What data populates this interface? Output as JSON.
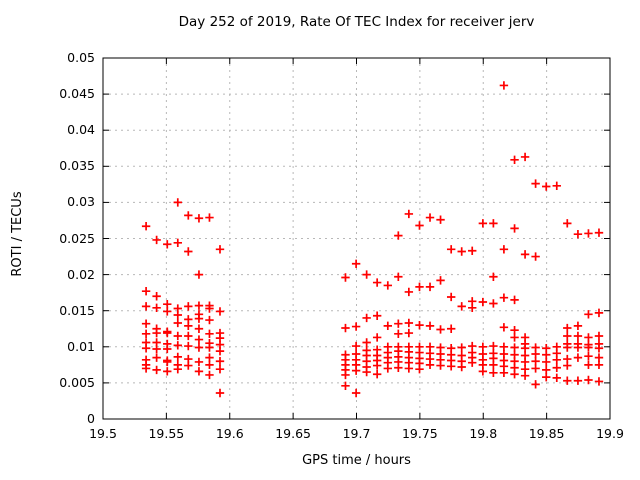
{
  "chart_data": {
    "type": "scatter",
    "title": "Day 252 of 2019, Rate Of TEC Index for receiver jerv",
    "xlabel": "GPS time / hours",
    "ylabel": "ROTI / TECUs",
    "xlim": [
      19.5,
      19.9
    ],
    "ylim": [
      0,
      0.05
    ],
    "xticks": [
      19.5,
      19.55,
      19.6,
      19.65,
      19.7,
      19.75,
      19.8,
      19.85,
      19.9
    ],
    "xtick_labels": [
      "19.5",
      "19.55",
      "19.6",
      "19.65",
      "19.7",
      "19.75",
      "19.8",
      "19.85",
      "19.9"
    ],
    "yticks": [
      0,
      0.005,
      0.01,
      0.015,
      0.02,
      0.025,
      0.03,
      0.035,
      0.04,
      0.045,
      0.05
    ],
    "ytick_labels": [
      "0",
      "0.005",
      "0.01",
      "0.015",
      "0.02",
      "0.025",
      "0.03",
      "0.035",
      "0.04",
      "0.045",
      "0.05"
    ],
    "grid": true,
    "legend": "none",
    "marker": "plus",
    "marker_color": "#ff0000",
    "grid_color": "#b8b8b8",
    "border_color": "#000000",
    "series": [
      {
        "name": "ROTI",
        "points": [
          [
            19.534,
            0.0267
          ],
          [
            19.534,
            0.0177
          ],
          [
            19.534,
            0.0156
          ],
          [
            19.534,
            0.0132
          ],
          [
            19.534,
            0.0118
          ],
          [
            19.534,
            0.0106
          ],
          [
            19.534,
            0.0098
          ],
          [
            19.534,
            0.0082
          ],
          [
            19.534,
            0.0075
          ],
          [
            19.534,
            0.007
          ],
          [
            19.5423,
            0.0248
          ],
          [
            19.5423,
            0.017
          ],
          [
            19.5423,
            0.0154
          ],
          [
            19.5423,
            0.0125
          ],
          [
            19.5423,
            0.0119
          ],
          [
            19.5423,
            0.0106
          ],
          [
            19.5423,
            0.0097
          ],
          [
            19.5423,
            0.0085
          ],
          [
            19.5423,
            0.0068
          ],
          [
            19.5507,
            0.0242
          ],
          [
            19.5507,
            0.0159
          ],
          [
            19.5507,
            0.0149
          ],
          [
            19.5507,
            0.0121
          ],
          [
            19.5507,
            0.0119
          ],
          [
            19.5507,
            0.0104
          ],
          [
            19.5507,
            0.0097
          ],
          [
            19.5507,
            0.0081
          ],
          [
            19.5507,
            0.0079
          ],
          [
            19.5507,
            0.0066
          ],
          [
            19.559,
            0.03
          ],
          [
            19.559,
            0.0244
          ],
          [
            19.559,
            0.0153
          ],
          [
            19.559,
            0.0144
          ],
          [
            19.559,
            0.0133
          ],
          [
            19.559,
            0.0115
          ],
          [
            19.559,
            0.0102
          ],
          [
            19.559,
            0.0086
          ],
          [
            19.559,
            0.0075
          ],
          [
            19.559,
            0.0069
          ],
          [
            19.5673,
            0.0282
          ],
          [
            19.5673,
            0.0232
          ],
          [
            19.5673,
            0.0156
          ],
          [
            19.5673,
            0.0138
          ],
          [
            19.5673,
            0.0129
          ],
          [
            19.5673,
            0.0115
          ],
          [
            19.5673,
            0.0101
          ],
          [
            19.5673,
            0.0083
          ],
          [
            19.5673,
            0.0074
          ],
          [
            19.5757,
            0.0278
          ],
          [
            19.5757,
            0.02
          ],
          [
            19.5757,
            0.0157
          ],
          [
            19.5757,
            0.0145
          ],
          [
            19.5757,
            0.0139
          ],
          [
            19.5757,
            0.0125
          ],
          [
            19.5757,
            0.011
          ],
          [
            19.5757,
            0.0099
          ],
          [
            19.5757,
            0.0079
          ],
          [
            19.5757,
            0.0066
          ],
          [
            19.584,
            0.0279
          ],
          [
            19.584,
            0.0157
          ],
          [
            19.584,
            0.0153
          ],
          [
            19.584,
            0.0137
          ],
          [
            19.584,
            0.0118
          ],
          [
            19.584,
            0.0105
          ],
          [
            19.584,
            0.0099
          ],
          [
            19.584,
            0.0085
          ],
          [
            19.584,
            0.0075
          ],
          [
            19.584,
            0.0061
          ],
          [
            19.5923,
            0.0235
          ],
          [
            19.5923,
            0.0149
          ],
          [
            19.5923,
            0.0119
          ],
          [
            19.5923,
            0.0112
          ],
          [
            19.5923,
            0.0103
          ],
          [
            19.5923,
            0.0094
          ],
          [
            19.5923,
            0.008
          ],
          [
            19.5923,
            0.0069
          ],
          [
            19.5923,
            0.0036
          ],
          [
            19.6913,
            0.0196
          ],
          [
            19.6913,
            0.0126
          ],
          [
            19.6913,
            0.0089
          ],
          [
            19.6913,
            0.0082
          ],
          [
            19.6913,
            0.0075
          ],
          [
            19.6913,
            0.0068
          ],
          [
            19.6913,
            0.0061
          ],
          [
            19.6913,
            0.0046
          ],
          [
            19.6997,
            0.0215
          ],
          [
            19.6997,
            0.0128
          ],
          [
            19.6997,
            0.0101
          ],
          [
            19.6997,
            0.009
          ],
          [
            19.6997,
            0.0082
          ],
          [
            19.6997,
            0.0075
          ],
          [
            19.6997,
            0.0067
          ],
          [
            19.6997,
            0.0036
          ],
          [
            19.708,
            0.02
          ],
          [
            19.708,
            0.014
          ],
          [
            19.708,
            0.0106
          ],
          [
            19.708,
            0.0095
          ],
          [
            19.708,
            0.0088
          ],
          [
            19.708,
            0.008
          ],
          [
            19.708,
            0.0072
          ],
          [
            19.708,
            0.0065
          ],
          [
            19.7163,
            0.0189
          ],
          [
            19.7163,
            0.0143
          ],
          [
            19.7163,
            0.0113
          ],
          [
            19.7163,
            0.0096
          ],
          [
            19.7163,
            0.0088
          ],
          [
            19.7163,
            0.0081
          ],
          [
            19.7163,
            0.0074
          ],
          [
            19.7163,
            0.0062
          ],
          [
            19.7247,
            0.0185
          ],
          [
            19.7247,
            0.0129
          ],
          [
            19.7247,
            0.01
          ],
          [
            19.7247,
            0.0092
          ],
          [
            19.7247,
            0.0085
          ],
          [
            19.7247,
            0.0078
          ],
          [
            19.7247,
            0.007
          ],
          [
            19.733,
            0.0254
          ],
          [
            19.733,
            0.0197
          ],
          [
            19.733,
            0.0132
          ],
          [
            19.733,
            0.0118
          ],
          [
            19.733,
            0.01
          ],
          [
            19.733,
            0.0094
          ],
          [
            19.733,
            0.0086
          ],
          [
            19.733,
            0.0079
          ],
          [
            19.733,
            0.0071
          ],
          [
            19.7413,
            0.0284
          ],
          [
            19.7413,
            0.0176
          ],
          [
            19.7413,
            0.0133
          ],
          [
            19.7413,
            0.0119
          ],
          [
            19.7413,
            0.01
          ],
          [
            19.7413,
            0.0093
          ],
          [
            19.7413,
            0.0085
          ],
          [
            19.7413,
            0.0078
          ],
          [
            19.7413,
            0.007
          ],
          [
            19.7497,
            0.0268
          ],
          [
            19.7497,
            0.0183
          ],
          [
            19.7497,
            0.013
          ],
          [
            19.7497,
            0.01
          ],
          [
            19.7497,
            0.0092
          ],
          [
            19.7497,
            0.0084
          ],
          [
            19.7497,
            0.0077
          ],
          [
            19.7497,
            0.0069
          ],
          [
            19.758,
            0.0279
          ],
          [
            19.758,
            0.0183
          ],
          [
            19.758,
            0.0129
          ],
          [
            19.758,
            0.01
          ],
          [
            19.758,
            0.0091
          ],
          [
            19.758,
            0.0083
          ],
          [
            19.758,
            0.0075
          ],
          [
            19.7663,
            0.0276
          ],
          [
            19.7663,
            0.0192
          ],
          [
            19.7663,
            0.0124
          ],
          [
            19.7663,
            0.0099
          ],
          [
            19.7663,
            0.009
          ],
          [
            19.7663,
            0.0082
          ],
          [
            19.7663,
            0.0074
          ],
          [
            19.7747,
            0.0235
          ],
          [
            19.7747,
            0.0169
          ],
          [
            19.7747,
            0.0125
          ],
          [
            19.7747,
            0.0098
          ],
          [
            19.7747,
            0.0089
          ],
          [
            19.7747,
            0.0081
          ],
          [
            19.7747,
            0.0073
          ],
          [
            19.783,
            0.0232
          ],
          [
            19.783,
            0.0156
          ],
          [
            19.783,
            0.0099
          ],
          [
            19.783,
            0.0088
          ],
          [
            19.783,
            0.008
          ],
          [
            19.783,
            0.0072
          ],
          [
            19.7913,
            0.0233
          ],
          [
            19.7913,
            0.0163
          ],
          [
            19.7913,
            0.0154
          ],
          [
            19.7913,
            0.0101
          ],
          [
            19.7913,
            0.0092
          ],
          [
            19.7913,
            0.0085
          ],
          [
            19.7913,
            0.0078
          ],
          [
            19.7997,
            0.0271
          ],
          [
            19.7997,
            0.0162
          ],
          [
            19.7997,
            0.01
          ],
          [
            19.7997,
            0.009
          ],
          [
            19.7997,
            0.0082
          ],
          [
            19.7997,
            0.0075
          ],
          [
            19.7997,
            0.0066
          ],
          [
            19.808,
            0.0271
          ],
          [
            19.808,
            0.0197
          ],
          [
            19.808,
            0.016
          ],
          [
            19.808,
            0.0101
          ],
          [
            19.808,
            0.0091
          ],
          [
            19.808,
            0.0084
          ],
          [
            19.808,
            0.0075
          ],
          [
            19.808,
            0.0064
          ],
          [
            19.8163,
            0.0462
          ],
          [
            19.8163,
            0.0235
          ],
          [
            19.8163,
            0.0168
          ],
          [
            19.8163,
            0.0127
          ],
          [
            19.8163,
            0.01
          ],
          [
            19.8163,
            0.009
          ],
          [
            19.8163,
            0.0081
          ],
          [
            19.8163,
            0.0073
          ],
          [
            19.8163,
            0.0064
          ],
          [
            19.8247,
            0.0359
          ],
          [
            19.8247,
            0.0264
          ],
          [
            19.8247,
            0.0165
          ],
          [
            19.8247,
            0.0123
          ],
          [
            19.8247,
            0.0113
          ],
          [
            19.8247,
            0.0099
          ],
          [
            19.8247,
            0.0089
          ],
          [
            19.8247,
            0.008
          ],
          [
            19.8247,
            0.0071
          ],
          [
            19.8247,
            0.0062
          ],
          [
            19.833,
            0.0363
          ],
          [
            19.833,
            0.0228
          ],
          [
            19.833,
            0.0113
          ],
          [
            19.833,
            0.0104
          ],
          [
            19.833,
            0.0098
          ],
          [
            19.833,
            0.0088
          ],
          [
            19.833,
            0.0079
          ],
          [
            19.833,
            0.0069
          ],
          [
            19.833,
            0.006
          ],
          [
            19.8413,
            0.0326
          ],
          [
            19.8413,
            0.0225
          ],
          [
            19.8413,
            0.0099
          ],
          [
            19.8413,
            0.009
          ],
          [
            19.8413,
            0.008
          ],
          [
            19.8413,
            0.007
          ],
          [
            19.8413,
            0.0048
          ],
          [
            19.8497,
            0.0322
          ],
          [
            19.8497,
            0.0098
          ],
          [
            19.8497,
            0.0089
          ],
          [
            19.8497,
            0.0079
          ],
          [
            19.8497,
            0.0068
          ],
          [
            19.8497,
            0.0058
          ],
          [
            19.858,
            0.0323
          ],
          [
            19.858,
            0.01
          ],
          [
            19.858,
            0.0091
          ],
          [
            19.858,
            0.0082
          ],
          [
            19.858,
            0.0071
          ],
          [
            19.858,
            0.0057
          ],
          [
            19.8663,
            0.0271
          ],
          [
            19.8663,
            0.0126
          ],
          [
            19.8663,
            0.0115
          ],
          [
            19.8663,
            0.0104
          ],
          [
            19.8663,
            0.0099
          ],
          [
            19.8663,
            0.0083
          ],
          [
            19.8663,
            0.0074
          ],
          [
            19.8663,
            0.0053
          ],
          [
            19.8747,
            0.0256
          ],
          [
            19.8747,
            0.0129
          ],
          [
            19.8747,
            0.0115
          ],
          [
            19.8747,
            0.0104
          ],
          [
            19.8747,
            0.0099
          ],
          [
            19.8747,
            0.0085
          ],
          [
            19.8747,
            0.0053
          ],
          [
            19.883,
            0.0257
          ],
          [
            19.883,
            0.0145
          ],
          [
            19.883,
            0.0113
          ],
          [
            19.883,
            0.0103
          ],
          [
            19.883,
            0.0099
          ],
          [
            19.883,
            0.0087
          ],
          [
            19.883,
            0.0075
          ],
          [
            19.883,
            0.0054
          ],
          [
            19.8913,
            0.0258
          ],
          [
            19.8913,
            0.0147
          ],
          [
            19.8913,
            0.0115
          ],
          [
            19.8913,
            0.0104
          ],
          [
            19.8913,
            0.0098
          ],
          [
            19.8913,
            0.0085
          ],
          [
            19.8913,
            0.0075
          ],
          [
            19.8913,
            0.0052
          ]
        ]
      }
    ]
  }
}
